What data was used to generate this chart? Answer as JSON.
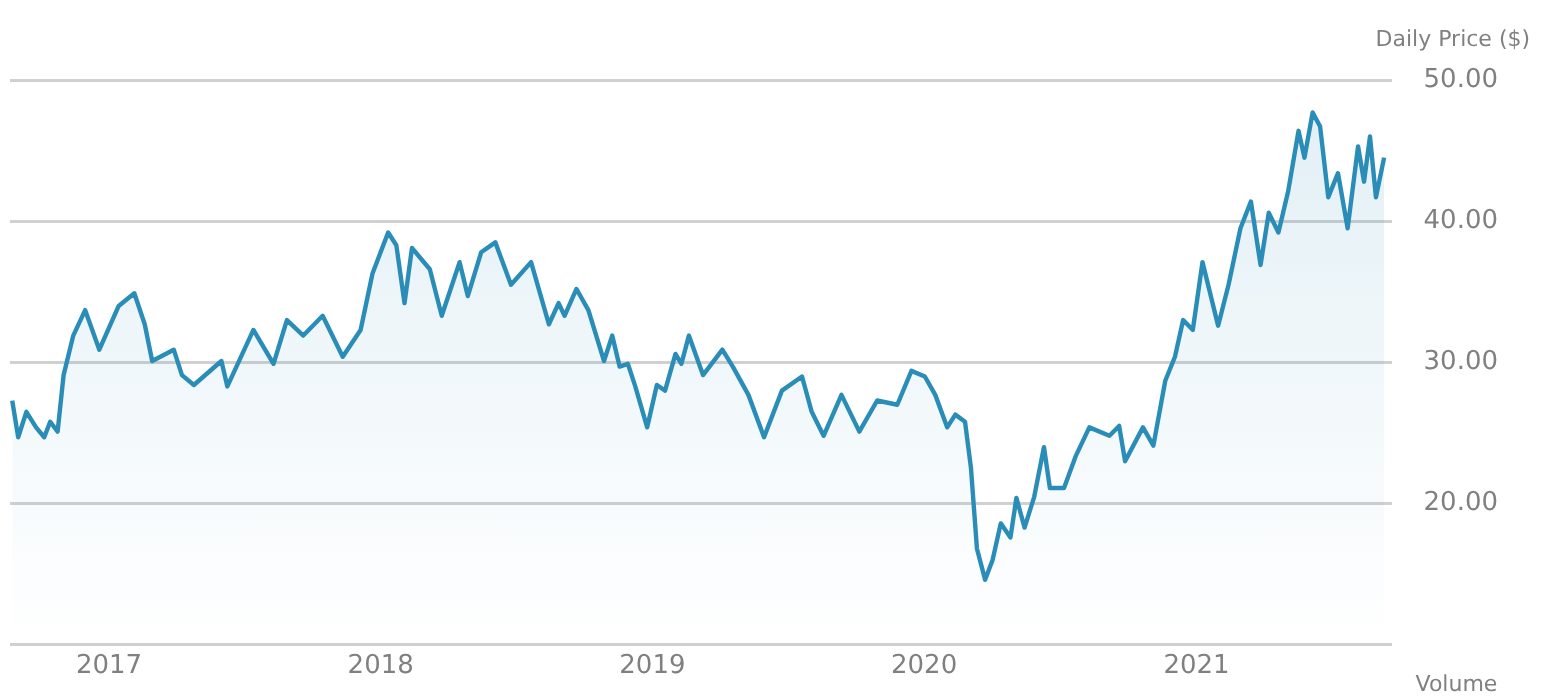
{
  "chart_data": {
    "type": "area",
    "ylabel": "Daily Price ($)",
    "annotations": [
      "Volume"
    ],
    "xlim": [
      "2016-08-21",
      "2021-09-20"
    ],
    "xticks": [
      {
        "value": "2017-01-01",
        "label": "2017"
      },
      {
        "value": "2018-01-01",
        "label": "2018"
      },
      {
        "value": "2019-01-01",
        "label": "2019"
      },
      {
        "value": "2020-01-01",
        "label": "2020"
      },
      {
        "value": "2021-01-01",
        "label": "2021"
      }
    ],
    "ylim": [
      10,
      50
    ],
    "yticks": [
      {
        "value": 10,
        "label": null
      },
      {
        "value": 20,
        "label": "20.00"
      },
      {
        "value": 30,
        "label": "30.00"
      },
      {
        "value": 40,
        "label": "40.00"
      },
      {
        "value": 50,
        "label": "50.00"
      }
    ],
    "grid": "y",
    "legend": false,
    "marker": "none",
    "line_style": "solid",
    "x": [
      "2016-08-24",
      "2016-09-01",
      "2016-09-12",
      "2016-09-25",
      "2016-10-06",
      "2016-10-14",
      "2016-10-24",
      "2016-11-01",
      "2016-11-14",
      "2016-11-30",
      "2016-12-19",
      "2017-01-14",
      "2017-02-04",
      "2017-02-18",
      "2017-02-28",
      "2017-03-29",
      "2017-04-09",
      "2017-04-25",
      "2017-06-01",
      "2017-06-09",
      "2017-07-14",
      "2017-08-10",
      "2017-08-28",
      "2017-09-19",
      "2017-10-15",
      "2017-11-11",
      "2017-12-05",
      "2017-12-21",
      "2018-01-11",
      "2018-01-22",
      "2018-02-02",
      "2018-02-12",
      "2018-03-08",
      "2018-03-24",
      "2018-04-17",
      "2018-04-28",
      "2018-05-16",
      "2018-06-04",
      "2018-06-25",
      "2018-07-22",
      "2018-08-15",
      "2018-08-28",
      "2018-09-05",
      "2018-09-21",
      "2018-10-07",
      "2018-10-28",
      "2018-11-08",
      "2018-11-18",
      "2018-11-29",
      "2018-12-09",
      "2018-12-25",
      "2019-01-07",
      "2019-01-18",
      "2019-02-01",
      "2019-02-09",
      "2019-02-19",
      "2019-03-10",
      "2019-04-05",
      "2019-04-19",
      "2019-05-10",
      "2019-05-31",
      "2019-06-24",
      "2019-07-21",
      "2019-08-03",
      "2019-08-19",
      "2019-09-12",
      "2019-10-06",
      "2019-10-30",
      "2019-11-26",
      "2019-12-15",
      "2020-01-02",
      "2020-01-16",
      "2020-02-01",
      "2020-02-12",
      "2020-02-25",
      "2020-03-04",
      "2020-03-12",
      "2020-03-23",
      "2020-04-02",
      "2020-04-13",
      "2020-04-26",
      "2020-05-04",
      "2020-05-15",
      "2020-05-28",
      "2020-06-10",
      "2020-06-18",
      "2020-07-07",
      "2020-07-23",
      "2020-08-10",
      "2020-09-06",
      "2020-09-19",
      "2020-09-27",
      "2020-10-21",
      "2020-11-04",
      "2020-11-20",
      "2020-12-03",
      "2020-12-14",
      "2020-12-27",
      "2021-01-09",
      "2021-01-30",
      "2021-02-13",
      "2021-03-01",
      "2021-03-15",
      "2021-03-28",
      "2021-04-08",
      "2021-04-21",
      "2021-05-04",
      "2021-05-18",
      "2021-05-26",
      "2021-06-06",
      "2021-06-16",
      "2021-06-27",
      "2021-07-10",
      "2021-07-23",
      "2021-08-06",
      "2021-08-14",
      "2021-08-22",
      "2021-08-30",
      "2021-09-10"
    ],
    "series": [
      {
        "color": "#2a8db8",
        "values": [
          27.3,
          24.7,
          26.5,
          25.4,
          24.7,
          25.8,
          25.1,
          29.1,
          31.9,
          33.7,
          30.9,
          34.0,
          34.9,
          32.7,
          30.1,
          30.9,
          29.1,
          28.4,
          30.1,
          28.3,
          32.3,
          29.9,
          33.0,
          31.9,
          33.3,
          30.4,
          32.3,
          36.3,
          39.2,
          38.3,
          34.2,
          38.1,
          36.6,
          33.3,
          37.1,
          34.7,
          37.8,
          38.5,
          35.5,
          37.1,
          32.7,
          34.2,
          33.3,
          35.2,
          33.7,
          30.1,
          31.9,
          29.7,
          29.9,
          28.3,
          25.4,
          28.4,
          28.0,
          30.6,
          29.9,
          31.9,
          29.1,
          30.9,
          29.7,
          27.7,
          24.7,
          28.0,
          29.0,
          26.5,
          24.8,
          27.7,
          25.1,
          27.3,
          27.0,
          29.4,
          29.0,
          27.7,
          25.4,
          26.3,
          25.8,
          22.5,
          16.8,
          14.6,
          16.0,
          18.6,
          17.6,
          20.4,
          18.3,
          20.5,
          24.0,
          21.1,
          21.1,
          23.4,
          25.4,
          24.8,
          25.5,
          23.0,
          25.4,
          24.1,
          28.7,
          30.4,
          33.0,
          32.3,
          37.1,
          32.6,
          35.5,
          39.5,
          41.4,
          36.9,
          40.6,
          39.2,
          42.1,
          46.4,
          44.5,
          47.7,
          46.7,
          41.7,
          43.4,
          39.5,
          45.3,
          42.8,
          46.0,
          41.7,
          44.5
        ]
      }
    ]
  }
}
